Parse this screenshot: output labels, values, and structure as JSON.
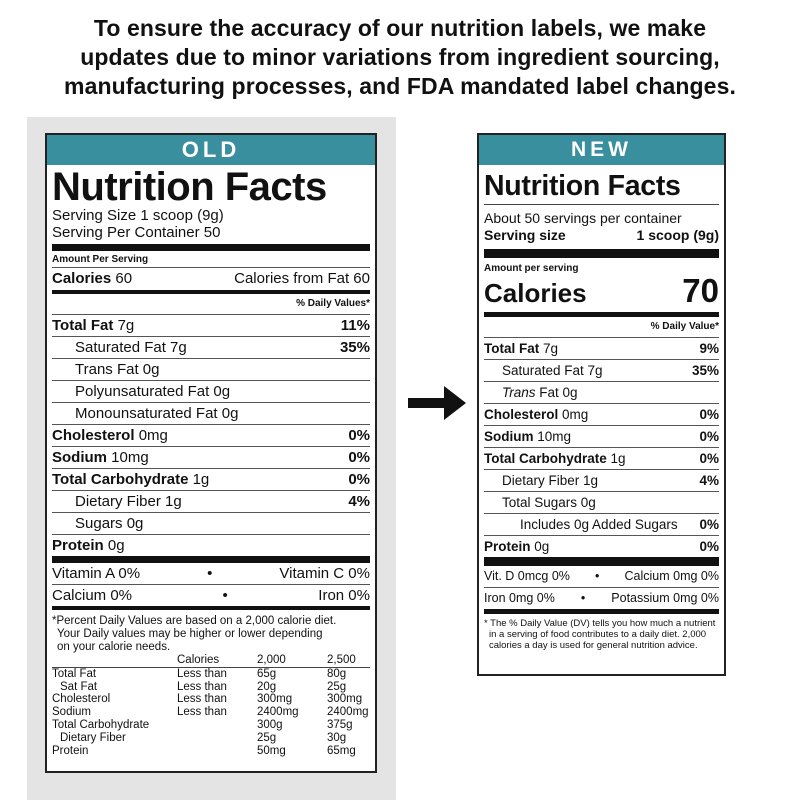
{
  "header": {
    "line1": "To ensure the accuracy of our nutrition labels, we make",
    "line2": "updates due to minor variations from ingredient sourcing,",
    "line3": "manufacturing processes, and FDA mandated label changes."
  },
  "old": {
    "tag": "OLD",
    "title": "Nutrition Facts",
    "serving_size": "Serving Size 1 scoop (9g)",
    "servings_per_container": "Serving Per Container 50",
    "amount_per_serving": "Amount Per Serving",
    "calories_label": "Calories",
    "calories_value": "60",
    "calories_from_fat": "Calories from Fat 60",
    "dv_header": "% Daily Values*",
    "rows": [
      {
        "label": "Total Fat",
        "amount": "7g",
        "dv": "11%"
      },
      {
        "label": "Saturated Fat 7g",
        "dv": "35%"
      },
      {
        "label": "Trans Fat 0g"
      },
      {
        "label": "Polyunsaturated Fat 0g"
      },
      {
        "label": "Monounsaturated Fat 0g"
      },
      {
        "label": "Cholesterol",
        "amount": "0mg",
        "dv": "0%"
      },
      {
        "label": "Sodium",
        "amount": "10mg",
        "dv": "0%"
      },
      {
        "label": "Total Carbohydrate",
        "amount": "1g",
        "dv": "0%"
      },
      {
        "label": "Dietary Fiber 1g",
        "dv": "4%"
      },
      {
        "label": "Sugars 0g"
      },
      {
        "label": "Protein",
        "amount": "0g"
      }
    ],
    "vitamins": {
      "a": "Vitamin A 0%",
      "c": "Vitamin C 0%",
      "calcium": "Calcium 0%",
      "iron": "Iron 0%",
      "dot": "•"
    },
    "footnote": {
      "l1": "*Percent Daily Values are based on a 2,000 calorie diet.",
      "l2": "Your Daily values may be higher or lower depending",
      "l3": "on your calorie needs."
    },
    "dv_table": {
      "header": [
        "",
        "Calories",
        "2,000",
        "2,500"
      ],
      "rows": [
        [
          "Total Fat",
          "Less than",
          "65g",
          "80g"
        ],
        [
          "Sat Fat",
          "Less than",
          "20g",
          "25g"
        ],
        [
          "Cholesterol",
          "Less than",
          "300mg",
          "300mg"
        ],
        [
          "Sodium",
          "Less than",
          "2400mg",
          "2400mg"
        ],
        [
          "Total Carbohydrate",
          "",
          "300g",
          "375g"
        ],
        [
          "Dietary Fiber",
          "",
          "25g",
          "30g"
        ],
        [
          "Protein",
          "",
          "50mg",
          "65mg"
        ]
      ]
    }
  },
  "new": {
    "tag": "NEW",
    "title": "Nutrition Facts",
    "servings": "About 50 servings per container",
    "serving_size_label": "Serving size",
    "serving_size_value": "1 scoop (9g)",
    "amount_per_serving": "Amount per serving",
    "calories_label": "Calories",
    "calories_value": "70",
    "dv_header": "% Daily Value*",
    "rows": [
      {
        "label": "Total Fat",
        "amount": "7g",
        "dv": "9%"
      },
      {
        "label": "Saturated Fat 7g",
        "dv": "35%"
      },
      {
        "label_italic": "Trans",
        "label": "Fat 0g"
      },
      {
        "label": "Cholesterol",
        "amount": "0mg",
        "dv": "0%"
      },
      {
        "label": "Sodium",
        "amount": "10mg",
        "dv": "0%"
      },
      {
        "label": "Total Carbohydrate",
        "amount": "1g",
        "dv": "0%"
      },
      {
        "label": "Dietary Fiber 1g",
        "dv": "4%"
      },
      {
        "label": "Total Sugars 0g"
      },
      {
        "label": "Includes 0g Added Sugars",
        "dv": "0%"
      },
      {
        "label": "Protein",
        "amount": "0g",
        "dv": "0%"
      }
    ],
    "vitamins": {
      "d": "Vit. D 0mcg 0%",
      "calcium": "Calcium 0mg 0%",
      "iron": "Iron 0mg 0%",
      "potassium": "Potassium 0mg 0%",
      "dot": "•"
    },
    "footnote": {
      "l1": "* The % Daily Value (DV) tells you how much a nutrient",
      "l2": "in a serving of food contributes to a daily diet. 2,000",
      "l3": "calories a day is used for general nutrition advice."
    }
  }
}
